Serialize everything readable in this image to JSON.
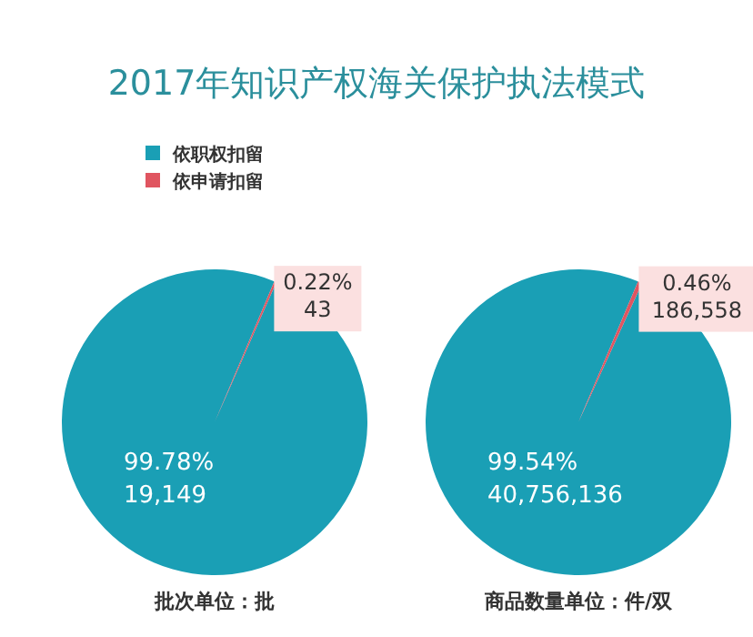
{
  "chart_data": [
    {
      "type": "pie",
      "title": "2017年知识产权海关保护执法模式",
      "categories": [
        "依职权扣留",
        "依申请扣留"
      ],
      "values": [
        19149,
        43
      ],
      "colors": [
        "#1a9fb5",
        "#e05560"
      ],
      "value_labels": [
        "99.78%\n19,149",
        "0.22%\n43"
      ],
      "xlabel": "批次单位：批",
      "legend": "top left"
    },
    {
      "type": "pie",
      "values": [
        40756136,
        186558
      ],
      "colors": [
        "#1a9fb5",
        "#e05560"
      ],
      "value_labels": [
        "99.54%\n40,756,136",
        "0.46%\n186,558"
      ],
      "xlabel": "商品数量单位：件/双"
    }
  ]
}
